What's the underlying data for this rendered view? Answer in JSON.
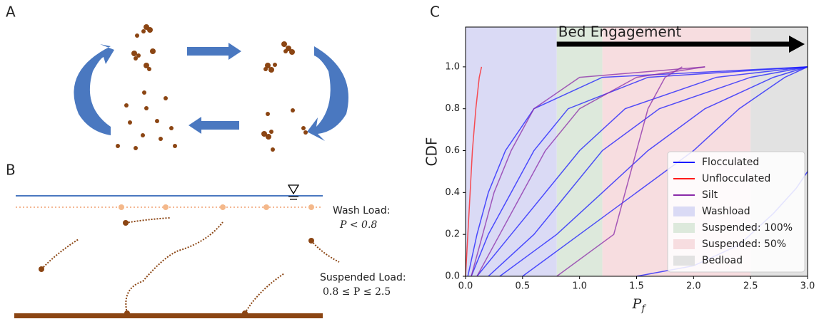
{
  "panels": {
    "a": {
      "label": "A"
    },
    "b": {
      "label": "B",
      "wash_load": {
        "title": "Wash Load:",
        "condition": "P < 0.8"
      },
      "suspended_load": {
        "title": "Suspended Load:",
        "condition": "0.8 ≤ P ≤ 2.5"
      }
    },
    "c": {
      "label": "C"
    }
  },
  "chart_data": {
    "type": "cdf-lines",
    "x_label": "P",
    "x_label_sub": "f",
    "y_label": "CDF",
    "annotation": "Bed Engagement",
    "xlim": [
      0,
      3.0
    ],
    "ylim": [
      0,
      1.19
    ],
    "xticks": [
      {
        "value": 0,
        "label": "0.0"
      },
      0.5,
      {
        "value": 1,
        "label": "1.0"
      },
      1.5,
      {
        "value": 2,
        "label": "2.0"
      },
      2.5,
      {
        "value": 3,
        "label": "3.0"
      }
    ],
    "yticks": [
      {
        "value": 0,
        "label": "0.0"
      },
      0.2,
      0.4,
      0.6,
      0.8,
      {
        "value": 1,
        "label": "1.0"
      }
    ],
    "regions": [
      {
        "name": "Washload",
        "color": "#dadaf5",
        "from": 0,
        "to": 0.8
      },
      {
        "name": "Suspended: 100%",
        "color": "#dde9dc",
        "from": 0.8,
        "to": 1.2
      },
      {
        "name": "Suspended: 50%",
        "color": "#f7dde0",
        "from": 1.2,
        "to": 2.5
      },
      {
        "name": "Bedload",
        "color": "#e2e2e2",
        "from": 2.5,
        "to": 3.0
      }
    ],
    "series": [
      {
        "name": "Flocculated",
        "color": "#1a1aff",
        "curves": [
          {
            "x": [
              0.02,
              0.1,
              0.2,
              0.35,
              0.6,
              1.2,
              3.0
            ],
            "values": [
              0,
              0.2,
              0.4,
              0.6,
              0.8,
              0.95,
              1.0
            ]
          },
          {
            "x": [
              0.05,
              0.2,
              0.4,
              0.6,
              0.9,
              1.6,
              3.0
            ],
            "values": [
              0,
              0.2,
              0.4,
              0.6,
              0.8,
              0.95,
              1.0
            ]
          },
          {
            "x": [
              0.1,
              0.4,
              0.7,
              1.0,
              1.4,
              2.2,
              3.0
            ],
            "values": [
              0,
              0.2,
              0.4,
              0.6,
              0.8,
              0.95,
              1.0
            ]
          },
          {
            "x": [
              0.2,
              0.6,
              0.9,
              1.2,
              1.7,
              2.5,
              3.0
            ],
            "values": [
              0,
              0.2,
              0.4,
              0.6,
              0.8,
              0.95,
              1.0
            ]
          },
          {
            "x": [
              0.3,
              0.8,
              1.2,
              1.6,
              2.1,
              2.7,
              3.0
            ],
            "values": [
              0,
              0.2,
              0.4,
              0.6,
              0.8,
              0.95,
              1.0
            ]
          },
          {
            "x": [
              0.5,
              1.0,
              1.5,
              2.0,
              2.4,
              2.8,
              3.0
            ],
            "values": [
              0,
              0.2,
              0.4,
              0.6,
              0.8,
              0.95,
              1.0
            ]
          },
          {
            "x": [
              1.5,
              2.0,
              2.4,
              2.7,
              2.9,
              3.0
            ],
            "values": [
              0,
              0.05,
              0.15,
              0.3,
              0.42,
              0.5
            ]
          }
        ]
      },
      {
        "name": "Unflocculated",
        "color": "#ff1a1a",
        "curves": [
          {
            "x": [
              0.0,
              0.02,
              0.04,
              0.06,
              0.09,
              0.12,
              0.14
            ],
            "values": [
              0,
              0.2,
              0.4,
              0.6,
              0.8,
              0.95,
              1.0
            ]
          }
        ]
      },
      {
        "name": "Silt",
        "color": "#8a2aa8",
        "curves": [
          {
            "x": [
              0.05,
              0.15,
              0.25,
              0.4,
              0.6,
              1.0,
              2.1
            ],
            "values": [
              0,
              0.2,
              0.4,
              0.6,
              0.8,
              0.95,
              1.0
            ]
          },
          {
            "x": [
              0.1,
              0.3,
              0.5,
              0.7,
              1.0,
              1.5,
              2.1
            ],
            "values": [
              0,
              0.2,
              0.4,
              0.6,
              0.8,
              0.95,
              1.0
            ]
          },
          {
            "x": [
              0.8,
              1.3,
              1.4,
              1.5,
              1.6,
              1.75,
              1.9
            ],
            "values": [
              0,
              0.2,
              0.4,
              0.6,
              0.8,
              0.95,
              1.0
            ]
          }
        ]
      }
    ]
  }
}
